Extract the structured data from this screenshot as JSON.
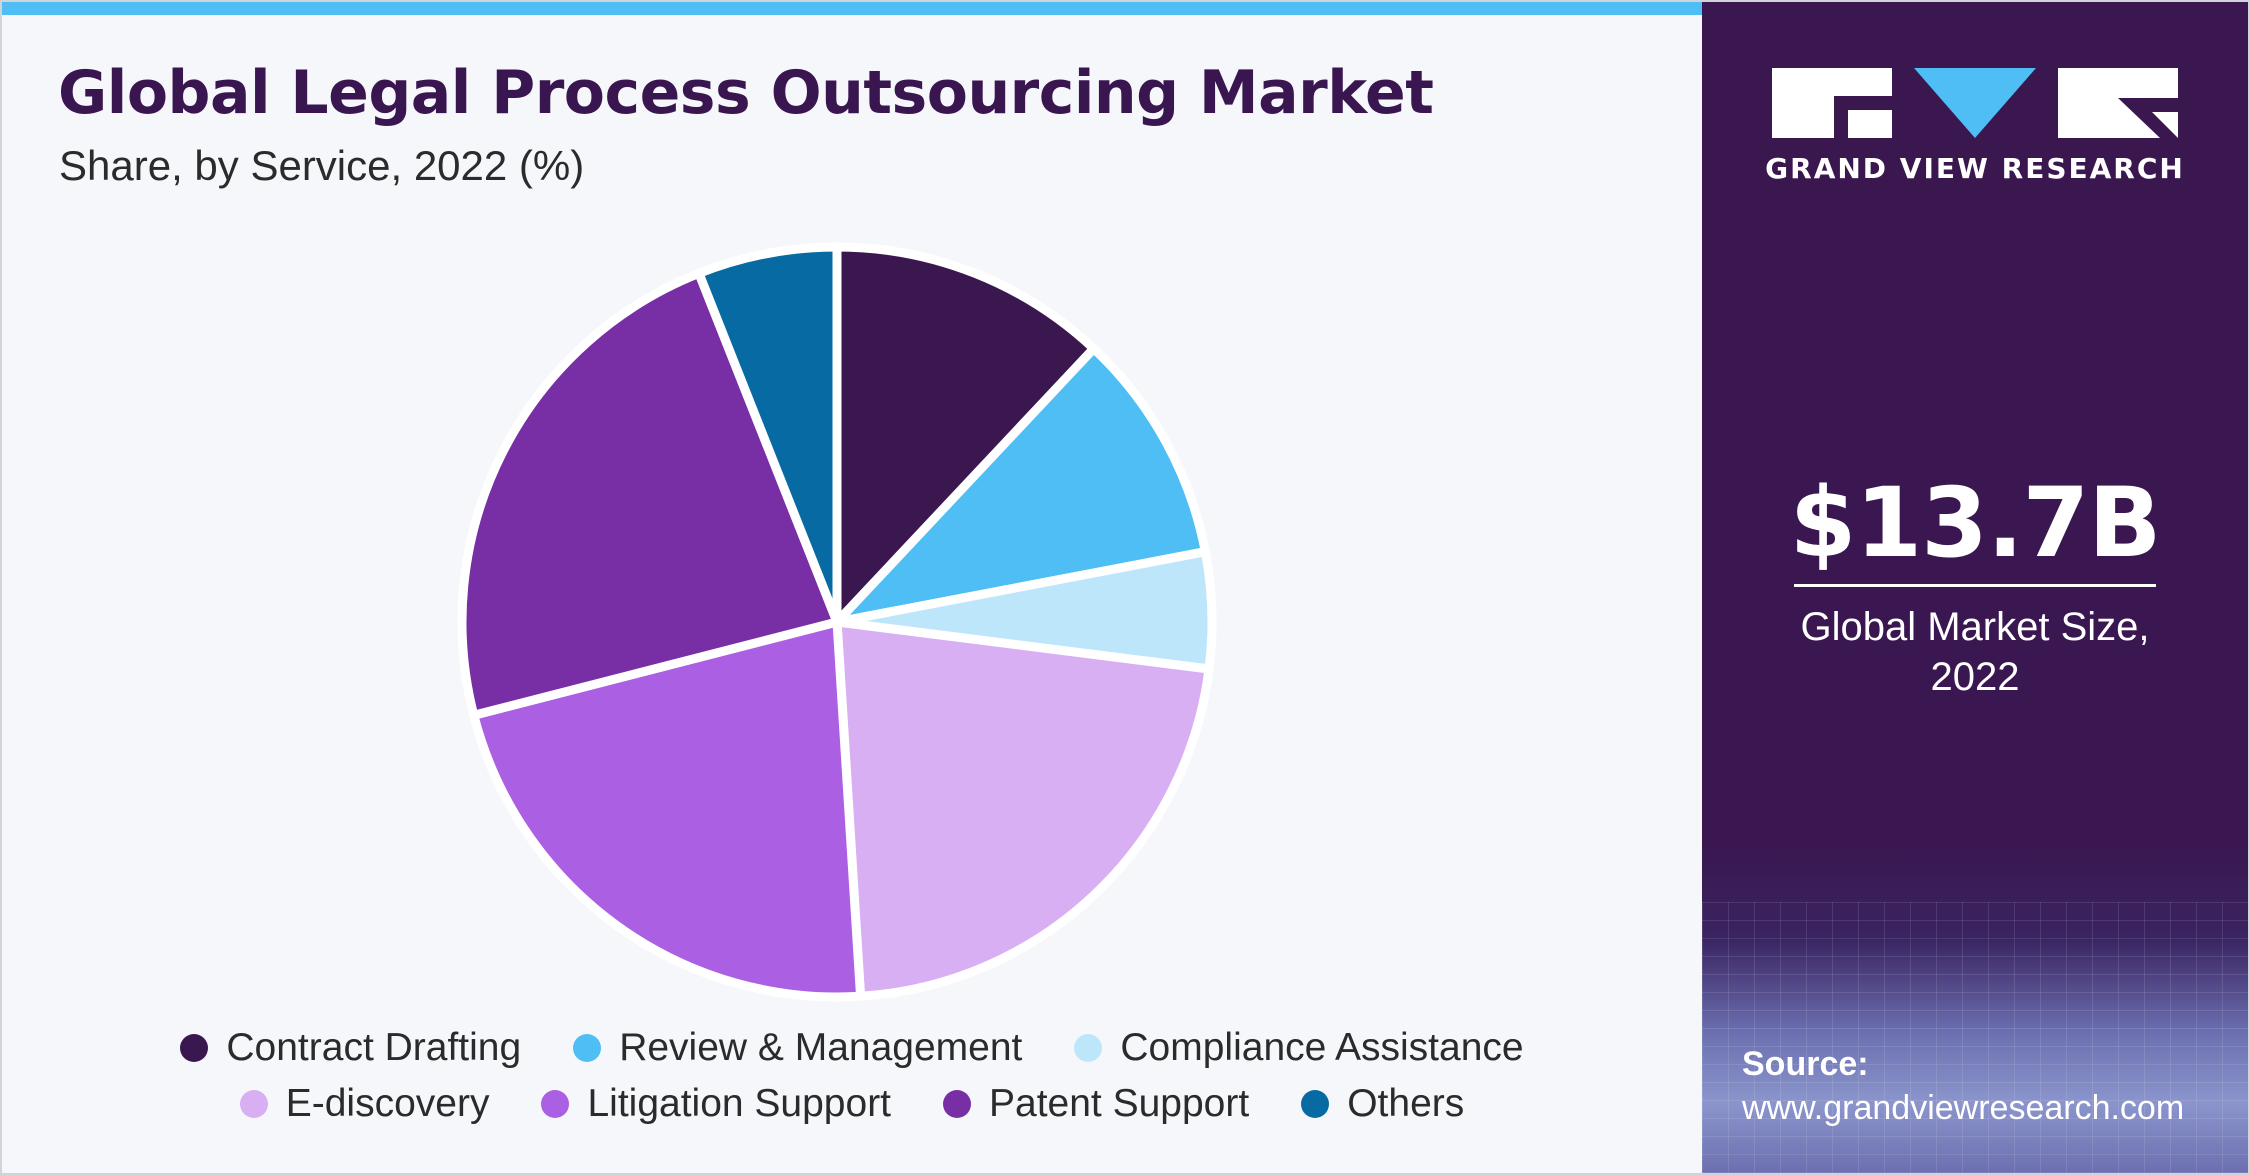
{
  "chart_data": {
    "type": "pie",
    "title": "Global Legal Process Outsourcing Market",
    "subtitle": "Share, by Service, 2022 (%)",
    "start_angle_deg": 0,
    "direction": "clockwise",
    "legend_placement": "bottom",
    "slices": [
      {
        "label": "Contract Drafting",
        "value": 12.0,
        "color": "#3b1750"
      },
      {
        "label": "Review & Management",
        "value": 10.0,
        "color": "#4fbef5"
      },
      {
        "label": "Compliance Assistance",
        "value": 5.0,
        "color": "#bde6fb"
      },
      {
        "label": "E-discovery",
        "value": 22.0,
        "color": "#d9aff3"
      },
      {
        "label": "Litigation Support",
        "value": 22.0,
        "color": "#ab5fe2"
      },
      {
        "label": "Patent Support",
        "value": 23.0,
        "color": "#782ea5"
      },
      {
        "label": "Others",
        "value": 6.0,
        "color": "#076aa3"
      }
    ]
  },
  "legend": {
    "rows": [
      [
        0,
        1,
        2
      ],
      [
        3,
        4,
        5,
        6
      ]
    ]
  },
  "sidebar": {
    "brand": "GRAND VIEW RESEARCH",
    "market_size_value": "$13.7B",
    "market_size_label_line1": "Global Market Size,",
    "market_size_label_line2": "2022",
    "source_label": "Source:",
    "source_url": "www.grandviewresearch.com"
  },
  "colors": {
    "accent_bar": "#4fbef5",
    "sidebar_bg": "#3b1750",
    "title": "#3a1650"
  }
}
